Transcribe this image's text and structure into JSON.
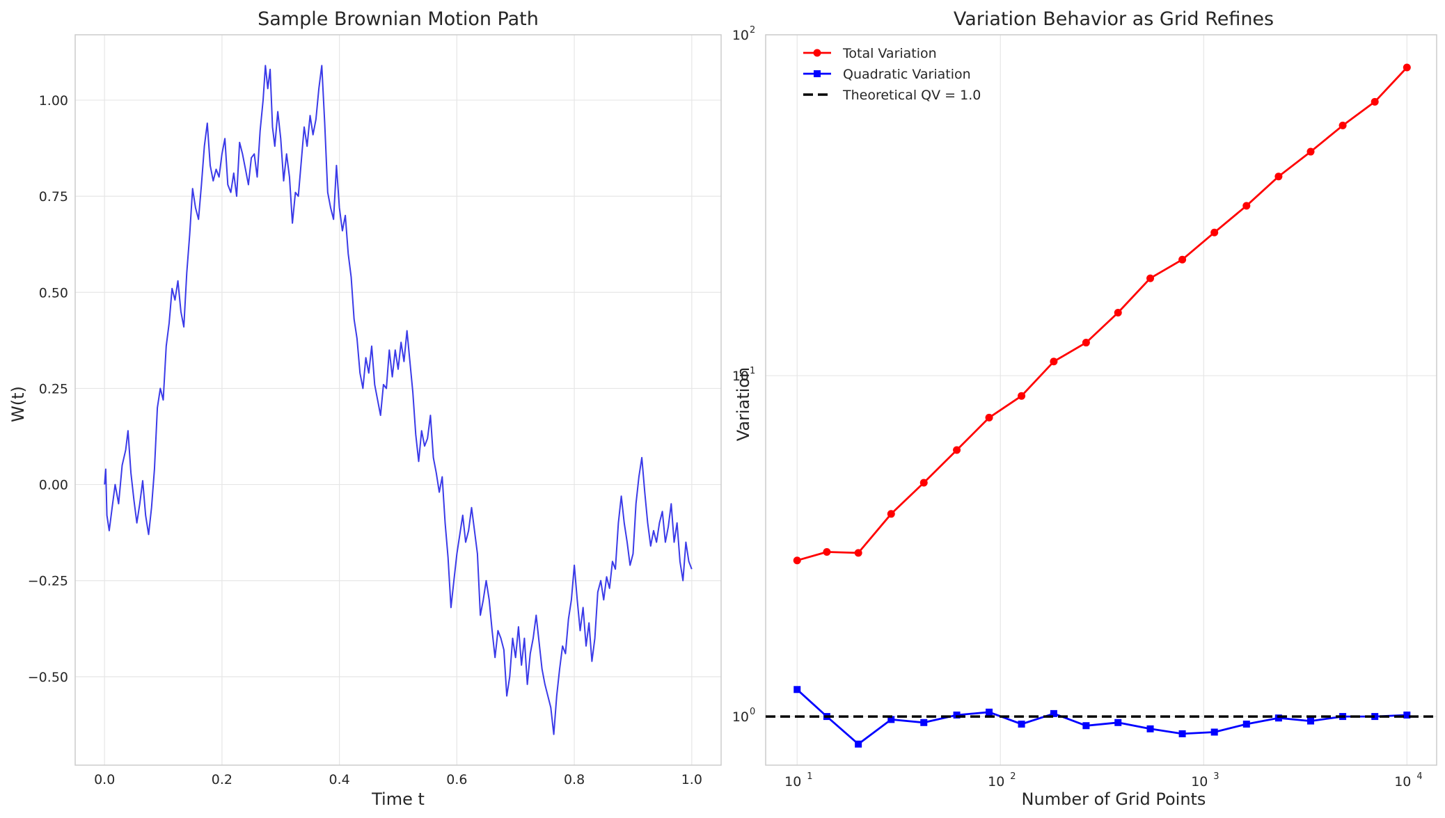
{
  "chart_data": [
    {
      "type": "line",
      "title": "Sample Brownian Motion Path",
      "xlabel": "Time t",
      "ylabel": "W(t)",
      "xlim": [
        -0.05,
        1.05
      ],
      "ylim": [
        -0.73,
        1.17
      ],
      "xticks": [
        0.0,
        0.2,
        0.4,
        0.6,
        0.8,
        1.0
      ],
      "xtick_labels": [
        "0.0",
        "0.2",
        "0.4",
        "0.6",
        "0.8",
        "1.0"
      ],
      "yticks": [
        -0.5,
        -0.25,
        0.0,
        0.25,
        0.5,
        0.75,
        1.0
      ],
      "ytick_labels": [
        "−0.50",
        "−0.25",
        "0.00",
        "0.25",
        "0.50",
        "0.75",
        "1.00"
      ],
      "grid": true,
      "series": [
        {
          "color": "#3a3ae8",
          "points": [
            [
              0.0,
              0.0
            ],
            [
              0.002,
              0.04
            ],
            [
              0.004,
              -0.08
            ],
            [
              0.008,
              -0.12
            ],
            [
              0.013,
              -0.06
            ],
            [
              0.018,
              0.0
            ],
            [
              0.024,
              -0.05
            ],
            [
              0.03,
              0.05
            ],
            [
              0.036,
              0.09
            ],
            [
              0.04,
              0.14
            ],
            [
              0.045,
              0.03
            ],
            [
              0.05,
              -0.04
            ],
            [
              0.055,
              -0.1
            ],
            [
              0.06,
              -0.05
            ],
            [
              0.065,
              0.01
            ],
            [
              0.07,
              -0.08
            ],
            [
              0.075,
              -0.13
            ],
            [
              0.08,
              -0.06
            ],
            [
              0.085,
              0.04
            ],
            [
              0.09,
              0.2
            ],
            [
              0.095,
              0.25
            ],
            [
              0.1,
              0.22
            ],
            [
              0.105,
              0.36
            ],
            [
              0.11,
              0.42
            ],
            [
              0.115,
              0.51
            ],
            [
              0.12,
              0.48
            ],
            [
              0.125,
              0.53
            ],
            [
              0.13,
              0.45
            ],
            [
              0.135,
              0.41
            ],
            [
              0.14,
              0.55
            ],
            [
              0.145,
              0.65
            ],
            [
              0.15,
              0.77
            ],
            [
              0.155,
              0.72
            ],
            [
              0.16,
              0.69
            ],
            [
              0.165,
              0.78
            ],
            [
              0.17,
              0.88
            ],
            [
              0.175,
              0.94
            ],
            [
              0.18,
              0.83
            ],
            [
              0.185,
              0.79
            ],
            [
              0.19,
              0.82
            ],
            [
              0.195,
              0.8
            ],
            [
              0.2,
              0.86
            ],
            [
              0.205,
              0.9
            ],
            [
              0.21,
              0.78
            ],
            [
              0.215,
              0.76
            ],
            [
              0.22,
              0.81
            ],
            [
              0.225,
              0.75
            ],
            [
              0.23,
              0.89
            ],
            [
              0.235,
              0.86
            ],
            [
              0.24,
              0.82
            ],
            [
              0.245,
              0.78
            ],
            [
              0.25,
              0.85
            ],
            [
              0.255,
              0.86
            ],
            [
              0.26,
              0.8
            ],
            [
              0.265,
              0.92
            ],
            [
              0.27,
              1.0
            ],
            [
              0.274,
              1.09
            ],
            [
              0.278,
              1.03
            ],
            [
              0.282,
              1.08
            ],
            [
              0.286,
              0.93
            ],
            [
              0.29,
              0.88
            ],
            [
              0.295,
              0.97
            ],
            [
              0.3,
              0.9
            ],
            [
              0.305,
              0.79
            ],
            [
              0.31,
              0.86
            ],
            [
              0.315,
              0.8
            ],
            [
              0.32,
              0.68
            ],
            [
              0.325,
              0.76
            ],
            [
              0.33,
              0.75
            ],
            [
              0.335,
              0.84
            ],
            [
              0.34,
              0.93
            ],
            [
              0.345,
              0.88
            ],
            [
              0.35,
              0.96
            ],
            [
              0.355,
              0.91
            ],
            [
              0.36,
              0.95
            ],
            [
              0.365,
              1.03
            ],
            [
              0.37,
              1.09
            ],
            [
              0.375,
              0.94
            ],
            [
              0.38,
              0.76
            ],
            [
              0.385,
              0.72
            ],
            [
              0.39,
              0.69
            ],
            [
              0.395,
              0.83
            ],
            [
              0.4,
              0.72
            ],
            [
              0.405,
              0.66
            ],
            [
              0.41,
              0.7
            ],
            [
              0.415,
              0.6
            ],
            [
              0.42,
              0.54
            ],
            [
              0.425,
              0.43
            ],
            [
              0.43,
              0.38
            ],
            [
              0.435,
              0.29
            ],
            [
              0.44,
              0.25
            ],
            [
              0.445,
              0.33
            ],
            [
              0.45,
              0.29
            ],
            [
              0.455,
              0.36
            ],
            [
              0.46,
              0.26
            ],
            [
              0.465,
              0.22
            ],
            [
              0.47,
              0.18
            ],
            [
              0.475,
              0.26
            ],
            [
              0.48,
              0.25
            ],
            [
              0.485,
              0.35
            ],
            [
              0.49,
              0.28
            ],
            [
              0.495,
              0.35
            ],
            [
              0.5,
              0.3
            ],
            [
              0.505,
              0.37
            ],
            [
              0.51,
              0.32
            ],
            [
              0.515,
              0.4
            ],
            [
              0.52,
              0.32
            ],
            [
              0.525,
              0.24
            ],
            [
              0.53,
              0.13
            ],
            [
              0.535,
              0.06
            ],
            [
              0.54,
              0.14
            ],
            [
              0.545,
              0.1
            ],
            [
              0.55,
              0.12
            ],
            [
              0.555,
              0.18
            ],
            [
              0.56,
              0.07
            ],
            [
              0.565,
              0.03
            ],
            [
              0.57,
              -0.02
            ],
            [
              0.575,
              0.02
            ],
            [
              0.58,
              -0.1
            ],
            [
              0.585,
              -0.19
            ],
            [
              0.59,
              -0.32
            ],
            [
              0.595,
              -0.25
            ],
            [
              0.6,
              -0.18
            ],
            [
              0.605,
              -0.13
            ],
            [
              0.61,
              -0.08
            ],
            [
              0.615,
              -0.15
            ],
            [
              0.62,
              -0.12
            ],
            [
              0.625,
              -0.06
            ],
            [
              0.63,
              -0.12
            ],
            [
              0.635,
              -0.18
            ],
            [
              0.64,
              -0.34
            ],
            [
              0.645,
              -0.3
            ],
            [
              0.65,
              -0.25
            ],
            [
              0.655,
              -0.3
            ],
            [
              0.66,
              -0.38
            ],
            [
              0.665,
              -0.45
            ],
            [
              0.67,
              -0.38
            ],
            [
              0.675,
              -0.4
            ],
            [
              0.68,
              -0.43
            ],
            [
              0.685,
              -0.55
            ],
            [
              0.69,
              -0.5
            ],
            [
              0.695,
              -0.4
            ],
            [
              0.7,
              -0.45
            ],
            [
              0.705,
              -0.37
            ],
            [
              0.71,
              -0.47
            ],
            [
              0.715,
              -0.4
            ],
            [
              0.72,
              -0.52
            ],
            [
              0.725,
              -0.44
            ],
            [
              0.73,
              -0.4
            ],
            [
              0.735,
              -0.34
            ],
            [
              0.74,
              -0.41
            ],
            [
              0.745,
              -0.48
            ],
            [
              0.75,
              -0.52
            ],
            [
              0.755,
              -0.55
            ],
            [
              0.76,
              -0.58
            ],
            [
              0.765,
              -0.65
            ],
            [
              0.77,
              -0.55
            ],
            [
              0.775,
              -0.48
            ],
            [
              0.78,
              -0.42
            ],
            [
              0.785,
              -0.44
            ],
            [
              0.79,
              -0.35
            ],
            [
              0.795,
              -0.3
            ],
            [
              0.8,
              -0.21
            ],
            [
              0.805,
              -0.3
            ],
            [
              0.81,
              -0.38
            ],
            [
              0.815,
              -0.32
            ],
            [
              0.82,
              -0.42
            ],
            [
              0.825,
              -0.36
            ],
            [
              0.83,
              -0.46
            ],
            [
              0.835,
              -0.4
            ],
            [
              0.84,
              -0.28
            ],
            [
              0.845,
              -0.25
            ],
            [
              0.85,
              -0.3
            ],
            [
              0.855,
              -0.24
            ],
            [
              0.86,
              -0.27
            ],
            [
              0.865,
              -0.2
            ],
            [
              0.87,
              -0.22
            ],
            [
              0.875,
              -0.1
            ],
            [
              0.88,
              -0.03
            ],
            [
              0.885,
              -0.1
            ],
            [
              0.89,
              -0.15
            ],
            [
              0.895,
              -0.21
            ],
            [
              0.9,
              -0.18
            ],
            [
              0.905,
              -0.05
            ],
            [
              0.91,
              0.02
            ],
            [
              0.915,
              0.07
            ],
            [
              0.92,
              -0.02
            ],
            [
              0.925,
              -0.1
            ],
            [
              0.93,
              -0.16
            ],
            [
              0.935,
              -0.12
            ],
            [
              0.94,
              -0.15
            ],
            [
              0.945,
              -0.1
            ],
            [
              0.95,
              -0.07
            ],
            [
              0.955,
              -0.15
            ],
            [
              0.96,
              -0.11
            ],
            [
              0.965,
              -0.05
            ],
            [
              0.97,
              -0.15
            ],
            [
              0.975,
              -0.1
            ],
            [
              0.98,
              -0.2
            ],
            [
              0.985,
              -0.25
            ],
            [
              0.99,
              -0.15
            ],
            [
              0.995,
              -0.2
            ],
            [
              1.0,
              -0.22
            ]
          ]
        }
      ]
    },
    {
      "type": "line",
      "title": "Variation Behavior as Grid Refines",
      "xlabel": "Number of Grid Points",
      "ylabel": "Variation",
      "xscale": "log",
      "yscale": "log",
      "xlim": [
        7.0,
        14000
      ],
      "ylim": [
        0.72,
        100
      ],
      "xticks": [
        10,
        100,
        1000,
        10000
      ],
      "xtick_labels": [
        {
          "base": "10",
          "exp": "1"
        },
        {
          "base": "10",
          "exp": "2"
        },
        {
          "base": "10",
          "exp": "3"
        },
        {
          "base": "10",
          "exp": "4"
        }
      ],
      "yticks": [
        1,
        10,
        100
      ],
      "ytick_labels": [
        {
          "base": "10",
          "exp": "0"
        },
        {
          "base": "10",
          "exp": "1"
        },
        {
          "base": "10",
          "exp": "2"
        }
      ],
      "grid": true,
      "legend_position": "top-left",
      "x": [
        10,
        14,
        20,
        29,
        42,
        61,
        88,
        127,
        183,
        264,
        379,
        546,
        785,
        1129,
        1624,
        2336,
        3360,
        4832,
        6951,
        10000
      ],
      "series": [
        {
          "name": "Total Variation",
          "color": "#ff0000",
          "marker": "circle",
          "values": [
            2.87,
            3.04,
            3.02,
            3.93,
            4.85,
            6.05,
            7.53,
            8.72,
            11.0,
            12.5,
            15.3,
            19.3,
            21.9,
            26.3,
            31.5,
            38.4,
            45.4,
            54.2,
            63.6,
            80.2
          ]
        },
        {
          "name": "Quadratic Variation",
          "color": "#0000ff",
          "marker": "square",
          "values": [
            1.2,
            1.0,
            0.83,
            0.98,
            0.96,
            1.01,
            1.03,
            0.95,
            1.02,
            0.94,
            0.96,
            0.92,
            0.89,
            0.9,
            0.95,
            0.99,
            0.97,
            1.0,
            1.0,
            1.01
          ]
        },
        {
          "name": "Theoretical QV = 1.0",
          "color": "#000000",
          "style": "dashed",
          "constant": 1.0
        }
      ]
    }
  ]
}
